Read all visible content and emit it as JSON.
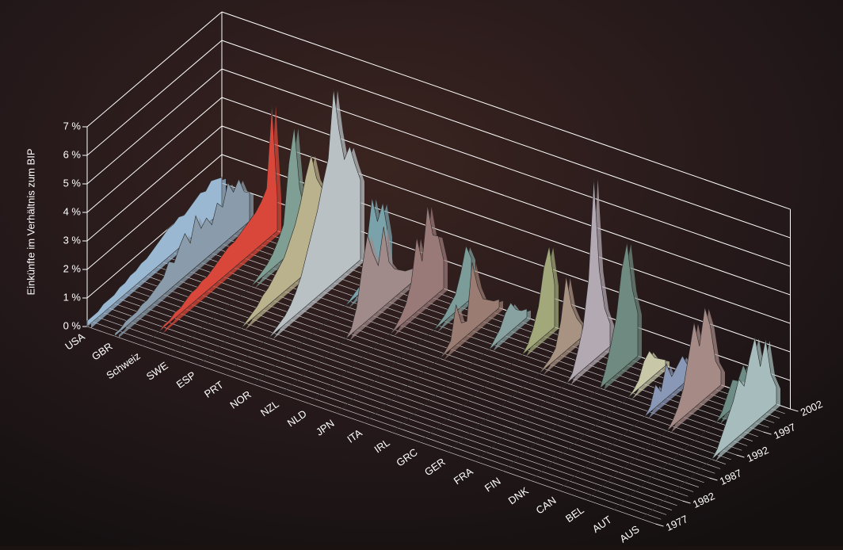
{
  "chart_data": {
    "type": "ribbon3d",
    "y_label": "Einkünfte im Verhältnis zum BIP",
    "x": [
      1977,
      1978,
      1979,
      1980,
      1981,
      1982,
      1983,
      1984,
      1985,
      1986,
      1987,
      1988,
      1989,
      1990,
      1991,
      1992,
      1993,
      1994,
      1995,
      1996,
      1997,
      1998,
      1999,
      2000,
      2001,
      2002
    ],
    "xlim": [
      1977,
      2002
    ],
    "xticks": [
      1977,
      1982,
      1987,
      1992,
      1997,
      2002
    ],
    "ylim": [
      0,
      7
    ],
    "yticks": [
      {
        "value": 0,
        "label": "0 %"
      },
      {
        "value": 1,
        "label": "1 %"
      },
      {
        "value": 2,
        "label": "2 %"
      },
      {
        "value": 3,
        "label": "3 %"
      },
      {
        "value": 4,
        "label": "4 %"
      },
      {
        "value": 5,
        "label": "5 %"
      },
      {
        "value": 6,
        "label": "6 %"
      },
      {
        "value": 7,
        "label": "7 %"
      }
    ],
    "grid": true,
    "series": [
      {
        "name": "USA",
        "color": "#9ab8d2",
        "values": [
          0.2,
          0.2,
          0.2,
          0.3,
          0.3,
          0.3,
          0.4,
          0.4,
          0.5,
          0.5,
          0.6,
          0.6,
          0.7,
          0.8,
          0.9,
          1.0,
          1.0,
          1.1,
          1.0,
          1.1,
          1.2,
          1.3,
          1.2,
          1.4,
          1.3,
          1.2
        ]
      },
      {
        "name": "GBR",
        "color": "#8a9cab",
        "values": [
          0.1,
          0.1,
          0.2,
          0.2,
          0.2,
          0.3,
          0.3,
          0.4,
          0.5,
          0.6,
          1.0,
          0.8,
          1.2,
          1.5,
          1.0,
          1.8,
          1.2,
          1.4,
          1.0,
          1.6,
          1.3,
          2.0,
          1.5,
          1.8,
          1.2,
          1.0
        ]
      },
      {
        "name": "Schweiz",
        "color": "#d8473a",
        "values": [
          0,
          0,
          0,
          0,
          0.1,
          0.1,
          0.2,
          0.2,
          0.3,
          0.4,
          0.4,
          0.5,
          0.5,
          0.6,
          0.7,
          0.8,
          0.9,
          0.9,
          1.0,
          1.1,
          1.2,
          1.3,
          1.5,
          1.8,
          4.6,
          1.2
        ]
      },
      {
        "name": "SWE",
        "color": "#7f9e94",
        "values": [
          0,
          0,
          0,
          0,
          0,
          0,
          0,
          0,
          0,
          0,
          0,
          0,
          0,
          0,
          0,
          0,
          0.1,
          0.2,
          0.3,
          0.5,
          0.8,
          1.2,
          3.2,
          4.3,
          2.0,
          1.0
        ]
      },
      {
        "name": "ESP",
        "color": "#b9b28c",
        "values": [
          0,
          0,
          0,
          0,
          0,
          0,
          0,
          0,
          0,
          0.1,
          0.2,
          0.3,
          0.5,
          0.6,
          0.8,
          1.0,
          1.2,
          1.6,
          2.0,
          2.6,
          3.4,
          4.0,
          3.0,
          2.5,
          3.2,
          2.2
        ]
      },
      {
        "name": "PRT",
        "color": "#b9c1c5",
        "values": [
          0,
          0,
          0,
          0,
          0,
          0,
          0,
          0,
          0,
          0.1,
          0.2,
          0.3,
          0.5,
          0.8,
          1.2,
          1.8,
          2.4,
          3.0,
          3.8,
          4.5,
          6.8,
          5.2,
          4.0,
          4.3,
          3.5,
          2.8
        ]
      },
      {
        "name": "NOR",
        "color": "#7aa2aa",
        "values": [
          0,
          0,
          0,
          0,
          0,
          0,
          0,
          0,
          0,
          0,
          0,
          0,
          0,
          0,
          0,
          0,
          0,
          0,
          0.1,
          0.2,
          0.3,
          1.5,
          3.0,
          2.0,
          2.5,
          1.2
        ]
      },
      {
        "name": "NZL",
        "color": "#a08a8a",
        "values": [
          0,
          0,
          0,
          0,
          0,
          0,
          0,
          0,
          0,
          0,
          0,
          0,
          0,
          0.2,
          0.8,
          2.0,
          3.0,
          2.2,
          1.6,
          2.8,
          1.4,
          1.0,
          0.8,
          0.6,
          0.5,
          0.4
        ]
      },
      {
        "name": "NLD",
        "color": "#9a7a78",
        "values": [
          0,
          0,
          0,
          0,
          0,
          0,
          0,
          0,
          0,
          0,
          0,
          0,
          0,
          0,
          0,
          0,
          0.1,
          0.3,
          0.6,
          1.2,
          2.6,
          1.6,
          3.4,
          2.2,
          2.0,
          1.0
        ]
      },
      {
        "name": "JPN",
        "color": "#7c9c9a",
        "values": [
          0,
          0,
          0,
          0,
          0,
          0,
          0,
          0,
          0,
          0,
          0,
          0,
          0,
          0,
          0,
          0,
          0,
          0,
          0,
          0.1,
          0.2,
          0.4,
          0.6,
          1.2,
          2.0,
          1.4
        ]
      },
      {
        "name": "ITA",
        "color": "#9b7c72",
        "values": [
          0,
          0,
          0,
          0,
          0,
          0,
          0,
          0,
          0,
          0,
          0,
          0,
          0,
          0,
          0,
          0.1,
          0.3,
          1.4,
          0.6,
          0.5,
          2.4,
          1.4,
          0.8,
          0.6,
          0.4,
          0.3
        ]
      },
      {
        "name": "IRL",
        "color": "#88a2a2",
        "values": [
          0,
          0,
          0,
          0,
          0,
          0,
          0,
          0,
          0,
          0,
          0,
          0,
          0,
          0,
          0,
          0,
          0,
          0,
          0,
          0.2,
          0.4,
          0.8,
          1.0,
          0.6,
          0.4,
          0.3
        ]
      },
      {
        "name": "GRC",
        "color": "#a2a87a",
        "values": [
          0,
          0,
          0,
          0,
          0,
          0,
          0,
          0,
          0,
          0,
          0,
          0,
          0,
          0,
          0,
          0,
          0,
          0,
          0,
          0,
          0.2,
          0.6,
          1.2,
          2.4,
          3.0,
          1.5
        ]
      },
      {
        "name": "GER",
        "color": "#a89282",
        "values": [
          0,
          0,
          0,
          0,
          0,
          0,
          0,
          0,
          0,
          0,
          0,
          0,
          0,
          0,
          0,
          0,
          0,
          0,
          0.1,
          0.2,
          0.4,
          1.2,
          2.6,
          1.4,
          0.8,
          0.4
        ]
      },
      {
        "name": "FRA",
        "color": "#b3a9b2",
        "values": [
          0,
          0,
          0,
          0,
          0,
          0,
          0,
          0,
          0,
          0,
          0,
          0,
          0,
          0,
          0,
          0,
          0,
          0,
          0.2,
          0.8,
          1.5,
          3.0,
          6.4,
          3.0,
          1.5,
          0.8
        ]
      },
      {
        "name": "FIN",
        "color": "#6f8a80",
        "values": [
          0,
          0,
          0,
          0,
          0,
          0,
          0,
          0,
          0,
          0,
          0,
          0,
          0,
          0,
          0,
          0,
          0,
          0,
          0,
          0.5,
          1.2,
          2.0,
          3.5,
          4.3,
          2.5,
          1.5
        ]
      },
      {
        "name": "DNK",
        "color": "#c8c8a8",
        "values": [
          0,
          0,
          0,
          0,
          0,
          0,
          0,
          0,
          0,
          0,
          0,
          0,
          0,
          0,
          0,
          0,
          0,
          0,
          0,
          0.1,
          0.3,
          0.8,
          1.0,
          0.6,
          0.4,
          0.2
        ]
      },
      {
        "name": "CAN",
        "color": "#8a98b8",
        "values": [
          0,
          0,
          0,
          0,
          0,
          0,
          0,
          0,
          0,
          0,
          0,
          0,
          0,
          0,
          0,
          0,
          0,
          0.2,
          0.8,
          0.4,
          1.2,
          0.6,
          0.8,
          1.0,
          0.5,
          0.3
        ]
      },
      {
        "name": "BEL",
        "color": "#a58a86",
        "values": [
          0,
          0,
          0,
          0,
          0,
          0,
          0,
          0,
          0,
          0,
          0,
          0,
          0,
          0,
          0,
          0,
          0.2,
          0.5,
          1.0,
          2.0,
          3.0,
          2.0,
          3.2,
          2.4,
          1.0,
          0.5
        ]
      },
      {
        "name": "AUT",
        "color": "#6e8c86",
        "values": [
          0,
          0,
          0,
          0,
          0,
          0,
          0,
          0,
          0,
          0,
          0,
          0,
          0,
          0,
          0,
          0,
          0,
          0,
          0,
          0,
          0.2,
          0.6,
          1.0,
          0.8,
          1.2,
          0.6
        ]
      },
      {
        "name": "AUS",
        "color": "#a7bcbc",
        "values": [
          0,
          0,
          0,
          0,
          0,
          0,
          0,
          0,
          0,
          0,
          0,
          0,
          0,
          0,
          0.2,
          0.6,
          1.0,
          1.4,
          2.0,
          1.6,
          2.4,
          3.0,
          1.8,
          2.6,
          1.2,
          0.6
        ]
      }
    ]
  }
}
